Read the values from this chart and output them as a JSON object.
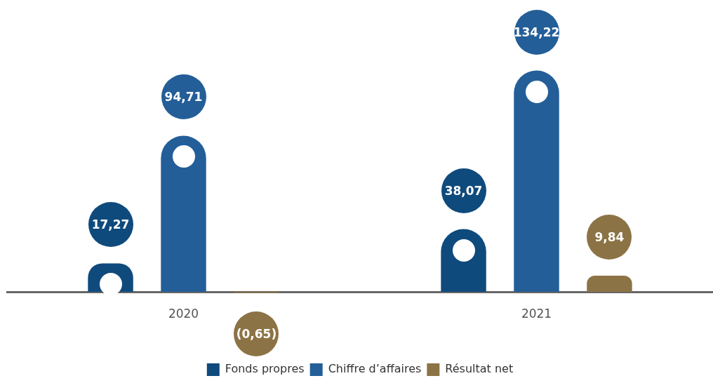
{
  "chart_data": {
    "type": "bar",
    "categories": [
      "2020",
      "2021"
    ],
    "legend": "bottom",
    "grid": false,
    "series": [
      {
        "name": "Fonds propres",
        "color": "#0f4a7c",
        "values": [
          17.27,
          38.07
        ],
        "value_labels": [
          "17,27",
          "38,07"
        ]
      },
      {
        "name": "Chiffre d’affaires",
        "color": "#235e98",
        "values": [
          94.71,
          134.22
        ],
        "value_labels": [
          "94,71",
          "134,22"
        ]
      },
      {
        "name": "Résultat net",
        "color": "#8c7345",
        "values": [
          -0.65,
          9.84
        ],
        "value_labels": [
          "(0,65)",
          "9,84"
        ]
      }
    ]
  }
}
